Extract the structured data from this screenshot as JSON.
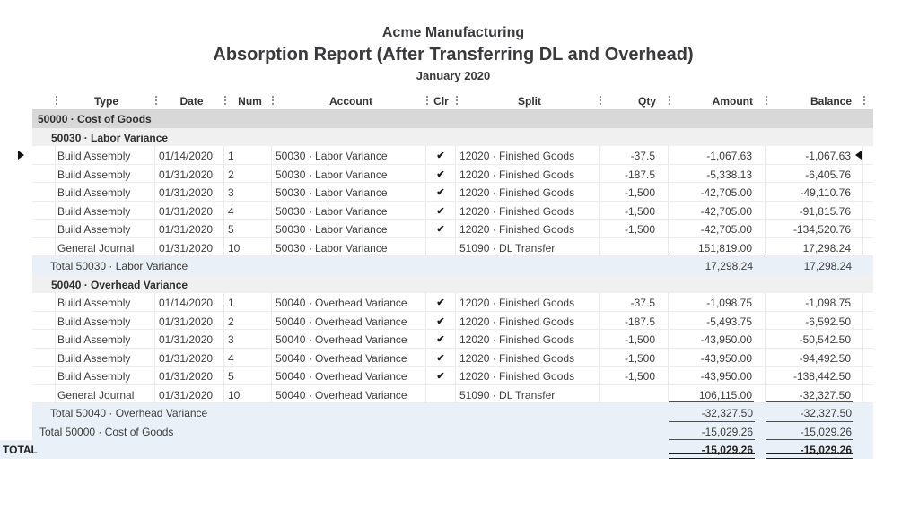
{
  "report": {
    "company": "Acme Manufacturing",
    "title": "Absorption Report (After Transferring DL and Overhead)",
    "period": "January 2020"
  },
  "colors": {
    "group_band": "#d8d8d8",
    "section_band": "#f0f0f0",
    "total_band": "#e9f0f7",
    "rule_line": "#4e4e4e"
  },
  "icons": {
    "check": "✔",
    "current_row_marker_left": "▶",
    "current_row_marker_right": "◀"
  },
  "table": {
    "columns": [
      "Type",
      "Date",
      "Num",
      "Account",
      "Clr",
      "Split",
      "Qty",
      "Amount",
      "Balance"
    ],
    "rows": [
      {
        "style": "group",
        "label": "50000 · Cost of Goods"
      },
      {
        "style": "subgroup",
        "label": "50030 · Labor Variance"
      },
      {
        "style": "data",
        "current": true,
        "type": "Build Assembly",
        "date": "01/14/2020",
        "num": "1",
        "account": "50030 · Labor Variance",
        "clr": true,
        "split": "12020 · Finished Goods",
        "qty": "-37.5",
        "amount": "-1,067.63",
        "balance": "-1,067.63"
      },
      {
        "style": "data",
        "type": "Build Assembly",
        "date": "01/31/2020",
        "num": "2",
        "account": "50030 · Labor Variance",
        "clr": true,
        "split": "12020 · Finished Goods",
        "qty": "-187.5",
        "amount": "-5,338.13",
        "balance": "-6,405.76"
      },
      {
        "style": "data",
        "type": "Build Assembly",
        "date": "01/31/2020",
        "num": "3",
        "account": "50030 · Labor Variance",
        "clr": true,
        "split": "12020 · Finished Goods",
        "qty": "-1,500",
        "amount": "-42,705.00",
        "balance": "-49,110.76"
      },
      {
        "style": "data",
        "type": "Build Assembly",
        "date": "01/31/2020",
        "num": "4",
        "account": "50030 · Labor Variance",
        "clr": true,
        "split": "12020 · Finished Goods",
        "qty": "-1,500",
        "amount": "-42,705.00",
        "balance": "-91,815.76"
      },
      {
        "style": "data",
        "type": "Build Assembly",
        "date": "01/31/2020",
        "num": "5",
        "account": "50030 · Labor Variance",
        "clr": true,
        "split": "12020 · Finished Goods",
        "qty": "-1,500",
        "amount": "-42,705.00",
        "balance": "-134,520.76"
      },
      {
        "style": "data",
        "type": "General Journal",
        "date": "01/31/2020",
        "num": "10",
        "account": "50030 · Labor Variance",
        "clr": false,
        "split": "51090 · DL Transfer",
        "qty": "",
        "amount": "151,819.00",
        "balance": "17,298.24",
        "rule": "single"
      },
      {
        "style": "total",
        "indent": 2,
        "label": "Total 50030 · Labor Variance",
        "amount": "17,298.24",
        "balance": "17,298.24"
      },
      {
        "style": "subgroup",
        "label": "50040 · Overhead Variance"
      },
      {
        "style": "data",
        "type": "Build Assembly",
        "date": "01/14/2020",
        "num": "1",
        "account": "50040 · Overhead Variance",
        "clr": true,
        "split": "12020 · Finished Goods",
        "qty": "-37.5",
        "amount": "-1,098.75",
        "balance": "-1,098.75"
      },
      {
        "style": "data",
        "type": "Build Assembly",
        "date": "01/31/2020",
        "num": "2",
        "account": "50040 · Overhead Variance",
        "clr": true,
        "split": "12020 · Finished Goods",
        "qty": "-187.5",
        "amount": "-5,493.75",
        "balance": "-6,592.50"
      },
      {
        "style": "data",
        "type": "Build Assembly",
        "date": "01/31/2020",
        "num": "3",
        "account": "50040 · Overhead Variance",
        "clr": true,
        "split": "12020 · Finished Goods",
        "qty": "-1,500",
        "amount": "-43,950.00",
        "balance": "-50,542.50"
      },
      {
        "style": "data",
        "type": "Build Assembly",
        "date": "01/31/2020",
        "num": "4",
        "account": "50040 · Overhead Variance",
        "clr": true,
        "split": "12020 · Finished Goods",
        "qty": "-1,500",
        "amount": "-43,950.00",
        "balance": "-94,492.50"
      },
      {
        "style": "data",
        "type": "Build Assembly",
        "date": "01/31/2020",
        "num": "5",
        "account": "50040 · Overhead Variance",
        "clr": true,
        "split": "12020 · Finished Goods",
        "qty": "-1,500",
        "amount": "-43,950.00",
        "balance": "-138,442.50"
      },
      {
        "style": "data",
        "type": "General Journal",
        "date": "01/31/2020",
        "num": "10",
        "account": "50040 · Overhead Variance",
        "clr": false,
        "split": "51090 · DL Transfer",
        "qty": "",
        "amount": "106,115.00",
        "balance": "-32,327.50",
        "rule": "single"
      },
      {
        "style": "total",
        "indent": 2,
        "label": "Total 50040 · Overhead Variance",
        "amount": "-32,327.50",
        "balance": "-32,327.50",
        "rule": "single"
      },
      {
        "style": "total",
        "indent": 1,
        "label": "Total 50000 · Cost of Goods",
        "amount": "-15,029.26",
        "balance": "-15,029.26",
        "rule": "single"
      },
      {
        "style": "grand",
        "indent": 0,
        "label": "TOTAL",
        "amount": "-15,029.26",
        "balance": "-15,029.26",
        "rule": "double"
      }
    ]
  }
}
